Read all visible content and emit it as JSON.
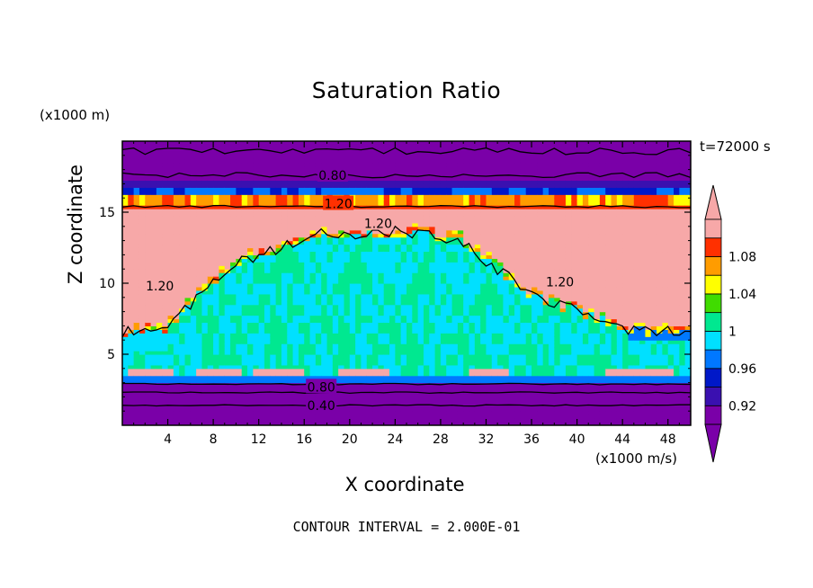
{
  "chart_data": {
    "type": "heatmap",
    "title": "Saturation Ratio",
    "xlabel": "X coordinate",
    "ylabel": "Z coordinate",
    "x_unit": "(x1000 m/s)",
    "y_unit": "(x1000 m)",
    "time_label": "t=72000 s",
    "contour_interval_note": "CONTOUR INTERVAL = 2.000E-01",
    "xlim": [
      0,
      50
    ],
    "ylim": [
      0,
      20
    ],
    "x_ticks": [
      4,
      8,
      12,
      16,
      20,
      24,
      28,
      32,
      36,
      40,
      44,
      48
    ],
    "x_tick_labels": [
      "4",
      "8",
      "12",
      "16",
      "20",
      "24",
      "28",
      "32",
      "36",
      "40",
      "44",
      "48"
    ],
    "y_ticks": [
      5,
      10,
      15
    ],
    "y_tick_labels": [
      "5",
      "10",
      "15"
    ],
    "colorbar": {
      "levels": [
        0.9,
        0.92,
        0.94,
        0.96,
        0.98,
        1.0,
        1.02,
        1.04,
        1.06,
        1.08,
        1.1
      ],
      "labels": [
        "0.92",
        "0.96",
        "1",
        "1.04",
        "1.08"
      ],
      "label_values": [
        0.92,
        0.96,
        1.0,
        1.04,
        1.08
      ],
      "colors": [
        "#7a00a8",
        "#3a10b0",
        "#0018c8",
        "#0078ff",
        "#00e0ff",
        "#00e890",
        "#40dc00",
        "#ffff00",
        "#ff9c00",
        "#ff3000",
        "#f7a8a8"
      ],
      "below_color": "#7a00a8",
      "above_color": "#f7a8a8"
    },
    "contour_labels": [
      {
        "text": "0.80",
        "x": 18.5,
        "y": 17.6
      },
      {
        "text": "1.20",
        "x": 19.0,
        "y": 15.6
      },
      {
        "text": "1.20",
        "x": 22.5,
        "y": 14.2
      },
      {
        "text": "1.20",
        "x": 3.3,
        "y": 9.8
      },
      {
        "text": "1.20",
        "x": 38.5,
        "y": 10.1
      },
      {
        "text": "0.80",
        "x": 17.5,
        "y": 2.7
      },
      {
        "text": "0.40",
        "x": 17.5,
        "y": 1.4
      }
    ]
  }
}
